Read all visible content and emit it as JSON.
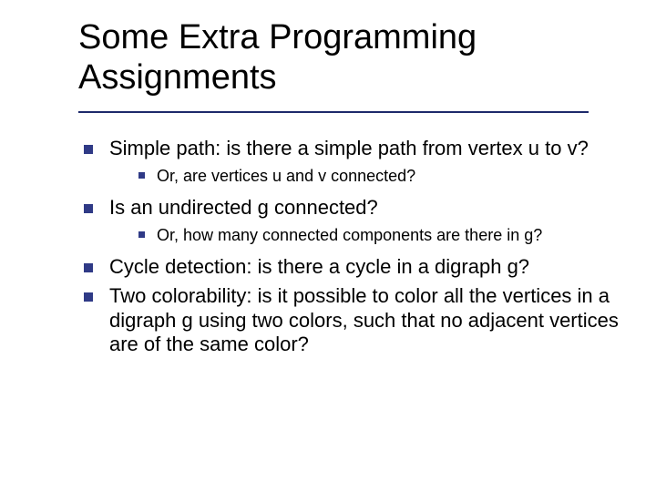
{
  "colors": {
    "text": "#000000",
    "bullet": "#2f3a86",
    "rule": "#1e2a6b",
    "background": "#ffffff"
  },
  "typography": {
    "title_fontsize": 38,
    "level1_fontsize": 22,
    "level2_fontsize": 18,
    "font_family": "Verdana"
  },
  "title": {
    "line1": "Some Extra Programming",
    "line2": "Assignments"
  },
  "bullets": [
    {
      "text": "Simple path: is there a simple path from vertex u to v?",
      "sub": [
        {
          "text": "Or, are vertices u and v connected?"
        }
      ]
    },
    {
      "text": "Is an undirected g connected?",
      "sub": [
        {
          "text": "Or, how many connected components are there in g?"
        }
      ]
    },
    {
      "text": "Cycle detection: is there a cycle in a digraph g?",
      "sub": []
    },
    {
      "text": "Two colorability: is it possible to color all the vertices in a digraph g using two colors, such that no adjacent vertices are of the same color?",
      "sub": []
    }
  ]
}
